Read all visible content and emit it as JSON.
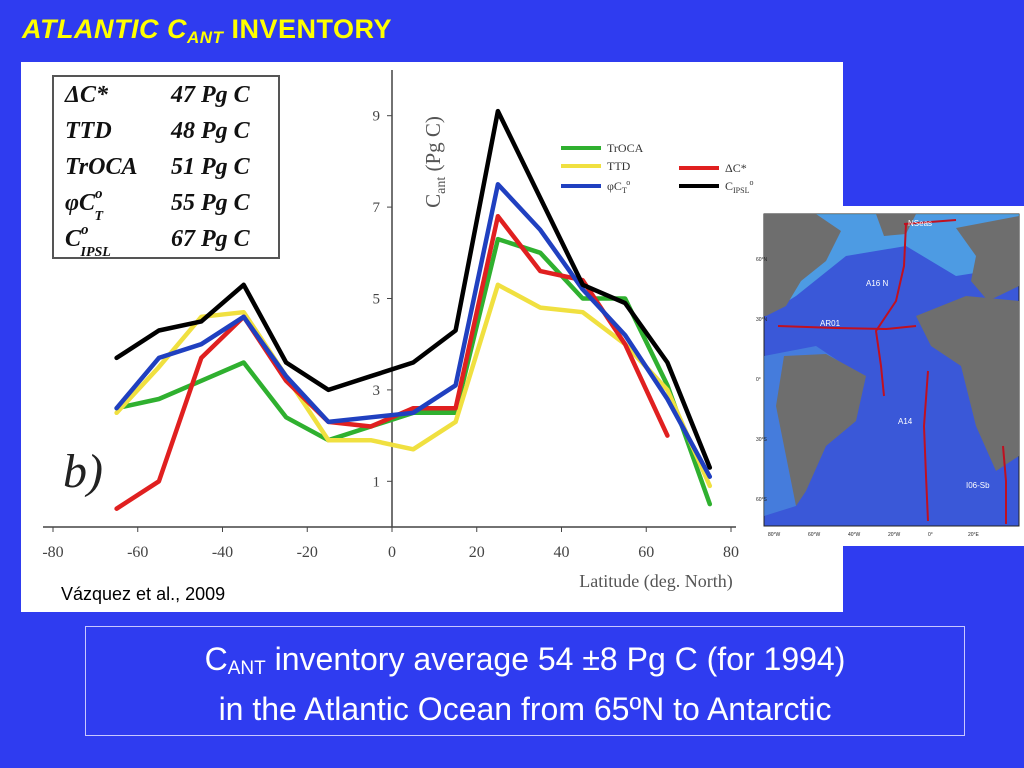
{
  "slide": {
    "title_prefix": "ATLANTIC C",
    "title_sub": "ANT",
    "title_suffix": " INVENTORY",
    "citation": "Vázquez et al., 2009",
    "summary_line1_prefix": "C",
    "summary_line1_sub": "ANT",
    "summary_line1_suffix": " inventory average 54 ±8 Pg C (for 1994)",
    "summary_line2": "in the Atlantic Ocean from 65ºN to Antarctic"
  },
  "inventory_table": [
    {
      "method": "ΔC*",
      "value": "47 Pg C"
    },
    {
      "method": "TTD",
      "value": "48 Pg C"
    },
    {
      "method": "TrOCA",
      "value": "51 Pg C"
    },
    {
      "method": "φC",
      "method_sub": "T",
      "method_sup": "o",
      "value": "55 Pg C"
    },
    {
      "method": "C",
      "method_sub": "IPSL",
      "method_sup": "o",
      "value": "67 Pg C"
    }
  ],
  "chart_data": {
    "type": "line",
    "panel_label": "b)",
    "xlabel": "Latitude (deg. North)",
    "ylabel": "C",
    "ylabel_sub": "ant",
    "ylabel_suffix": " (Pg C)",
    "xlim": [
      -80,
      80
    ],
    "ylim": [
      0,
      10
    ],
    "x_ticks": [
      "-80",
      "-60",
      "-40",
      "-20",
      "0",
      "20",
      "40",
      "60",
      "80"
    ],
    "y_ticks": [
      "1",
      "3",
      "5",
      "7",
      "9"
    ],
    "x": [
      -65,
      -55,
      -45,
      -35,
      -25,
      -15,
      -5,
      5,
      15,
      25,
      35,
      45,
      55,
      65,
      75
    ],
    "series": [
      {
        "name": "TrOCA",
        "color": "#2fb02f",
        "values": [
          2.6,
          2.8,
          3.2,
          3.6,
          2.4,
          1.9,
          2.2,
          2.5,
          2.5,
          6.3,
          6.0,
          5.0,
          5.0,
          3.1,
          0.5
        ]
      },
      {
        "name": "TTD",
        "color": "#f0e040",
        "values": [
          2.5,
          3.5,
          4.6,
          4.7,
          3.3,
          1.9,
          1.9,
          1.7,
          2.3,
          5.3,
          4.8,
          4.7,
          4.0,
          3.0,
          0.9
        ]
      },
      {
        "name": "ΔC*",
        "color": "#e02020",
        "values": [
          0.4,
          1.0,
          3.7,
          4.6,
          3.2,
          2.3,
          2.2,
          2.6,
          2.6,
          6.8,
          5.6,
          5.4,
          4.0,
          2.0,
          null
        ]
      },
      {
        "name": "φC",
        "name_sub": "T",
        "name_sup": "o",
        "color": "#2040c0",
        "values": [
          2.6,
          3.7,
          4.0,
          4.6,
          3.3,
          2.3,
          2.4,
          2.5,
          3.1,
          7.5,
          6.5,
          5.2,
          4.2,
          2.8,
          1.1
        ]
      },
      {
        "name": "C",
        "name_sub": "IPSL",
        "name_sup": "o",
        "color": "#000000",
        "values": [
          3.7,
          4.3,
          4.5,
          5.3,
          3.6,
          3.0,
          3.3,
          3.6,
          4.3,
          9.1,
          7.2,
          5.3,
          4.9,
          3.6,
          1.3
        ]
      }
    ],
    "legend": "top-right"
  },
  "map": {
    "labels": [
      "NSeas",
      "A16 N",
      "AR01",
      "A14",
      "I06-Sb"
    ],
    "lat_labels": [
      "60°N",
      "30°N",
      "0°",
      "30°S",
      "60°S"
    ],
    "lon_labels": [
      "80°W",
      "60°W",
      "40°W",
      "20°W",
      "0°",
      "20°E"
    ]
  }
}
